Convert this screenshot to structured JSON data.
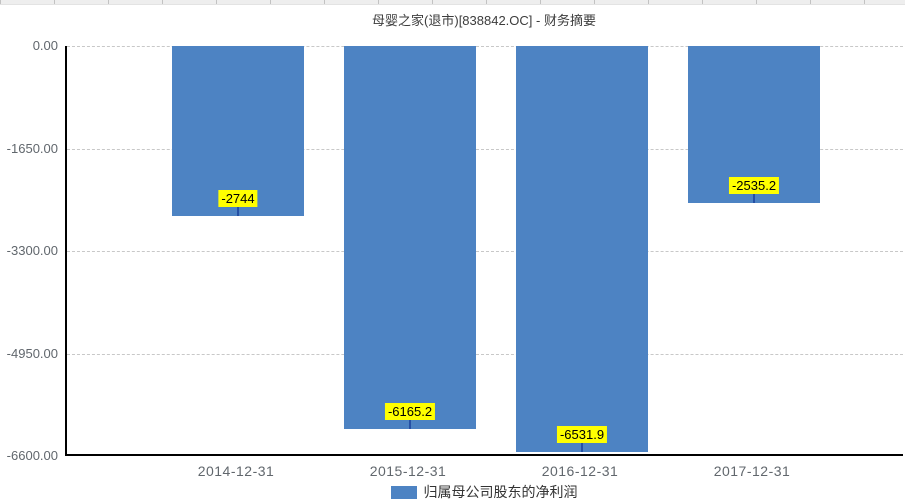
{
  "window": {
    "scrollbar_note": "thin gray track strip at very top of screenshot"
  },
  "chart_data": {
    "type": "bar",
    "title": "母婴之家(退市)[838842.OC] - 财务摘要",
    "categories": [
      "2014-12-31",
      "2015-12-31",
      "2016-12-31",
      "2017-12-31"
    ],
    "series": [
      {
        "name": "归属母公司股东的净利润",
        "color": "#4d83c3",
        "values": [
          -2744,
          -6165.2,
          -6531.9,
          -2535.2
        ]
      }
    ],
    "data_labels": {
      "texts": [
        "-2744",
        "-6165.2",
        "-6531.9",
        "-2535.2"
      ],
      "background": "#ffff00",
      "text_color": "#000000",
      "connector_color": "#2550a5"
    },
    "y_axis": {
      "ticks": [
        {
          "label": "0.00",
          "value": 0
        },
        {
          "label": "-1650.00",
          "value": -1650
        },
        {
          "label": "-3300.00",
          "value": -3300
        },
        {
          "label": "-4950.00",
          "value": -4950
        },
        {
          "label": "-6600.00",
          "value": -6600
        }
      ],
      "min": -6600,
      "max": 0
    },
    "grid": {
      "style": "dashed",
      "color": "#c8c8c8",
      "horizontal": true
    },
    "legend": {
      "position": "bottom",
      "items": [
        {
          "label": "归属母公司股东的净利润",
          "color": "#4d83c3"
        }
      ]
    },
    "axis_color": "#000000"
  }
}
